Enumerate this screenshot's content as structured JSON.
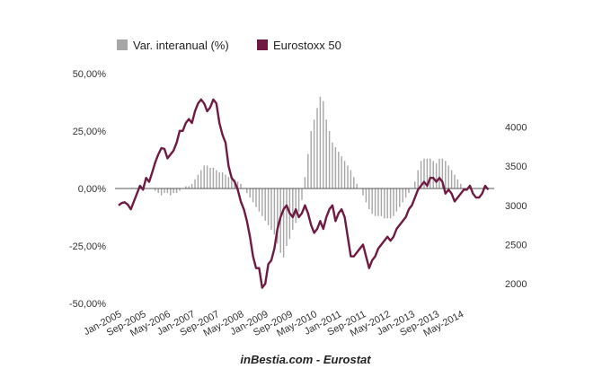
{
  "chart_data": {
    "type": "bar+line",
    "title": "",
    "legend": {
      "placement": "top-center",
      "items": [
        {
          "label": "Var. interanual (%)",
          "color": "#a6a6a6"
        },
        {
          "label": "Eurostoxx 50",
          "color": "#6e1a43"
        }
      ]
    },
    "x_tick_labels": [
      "Jan-2005",
      "Sep-2005",
      "May-2006",
      "Jan-2007",
      "Sep-2007",
      "May-2008",
      "Jan-2009",
      "Sep-2009",
      "May-2010",
      "Jan-2011",
      "Sep-2011",
      "May-2012",
      "Jan-2013",
      "Sep-2013",
      "May-2014"
    ],
    "left_axis": {
      "tick_labels": [
        "50,00%",
        "25,00%",
        "0,00%",
        "-25,00%",
        "-50,00%"
      ],
      "ylim": [
        -50,
        50
      ]
    },
    "right_axis": {
      "tick_labels": [
        "4000",
        "3500",
        "3000",
        "2500",
        "2000"
      ],
      "ylim": [
        1750,
        4680
      ]
    },
    "start_month": "Jan-2005",
    "series": [
      {
        "name": "Var. interanual (%)",
        "axis": "left",
        "kind": "bar",
        "values": [
          null,
          null,
          null,
          null,
          null,
          null,
          null,
          null,
          null,
          null,
          null,
          null,
          -1,
          -2,
          -3,
          -2,
          -2,
          -3,
          -2,
          -2,
          -1,
          0,
          1,
          1,
          2,
          4,
          6,
          8,
          10,
          10,
          9,
          9,
          8,
          7,
          7,
          6,
          5,
          5,
          4,
          3,
          2,
          0,
          -2,
          -4,
          -6,
          -8,
          -10,
          -12,
          -14,
          -16,
          -18,
          -20,
          -24,
          -28,
          -30,
          -25,
          -22,
          -18,
          -15,
          -10,
          -5,
          5,
          15,
          25,
          30,
          35,
          40,
          38,
          30,
          25,
          20,
          18,
          16,
          14,
          12,
          10,
          8,
          5,
          2,
          0,
          -3,
          -6,
          -9,
          -11,
          -12,
          -12,
          -12,
          -13,
          -13,
          -13,
          -12,
          -10,
          -8,
          -6,
          -4,
          -2,
          0,
          3,
          8,
          12,
          13,
          13,
          13,
          12,
          11,
          13,
          13,
          12,
          10,
          8,
          6,
          4,
          2
        ]
      },
      {
        "name": "Eurostoxx 50",
        "axis": "right",
        "kind": "line",
        "values": [
          3000,
          3030,
          3040,
          3010,
          2950,
          3050,
          3150,
          3250,
          3200,
          3350,
          3300,
          3420,
          3550,
          3650,
          3730,
          3720,
          3600,
          3650,
          3700,
          3800,
          3950,
          3950,
          4050,
          4100,
          4050,
          4200,
          4300,
          4350,
          4300,
          4200,
          4250,
          4350,
          4300,
          4050,
          3900,
          3800,
          3500,
          3350,
          3300,
          3200,
          3050,
          2950,
          2800,
          2600,
          2350,
          2200,
          2200,
          1950,
          2000,
          2250,
          2300,
          2450,
          2700,
          2850,
          2950,
          3000,
          2900,
          2850,
          2950,
          2850,
          2900,
          3000,
          2900,
          2750,
          2650,
          2700,
          2800,
          2700,
          2850,
          2950,
          3000,
          2800,
          2900,
          2950,
          2850,
          2600,
          2350,
          2350,
          2400,
          2450,
          2500,
          2350,
          2200,
          2300,
          2350,
          2450,
          2500,
          2550,
          2600,
          2550,
          2600,
          2700,
          2750,
          2800,
          2850,
          2950,
          3000,
          3100,
          3200,
          3250,
          3300,
          3250,
          3350,
          3350,
          3300,
          3350,
          3300,
          3150,
          3200,
          3150,
          3050,
          3100,
          3150,
          3200,
          3200,
          3250,
          3150,
          3100,
          3100,
          3150,
          3250,
          3200
        ]
      }
    ],
    "grid": false
  },
  "footer": "inBestia.com - Eurostat"
}
